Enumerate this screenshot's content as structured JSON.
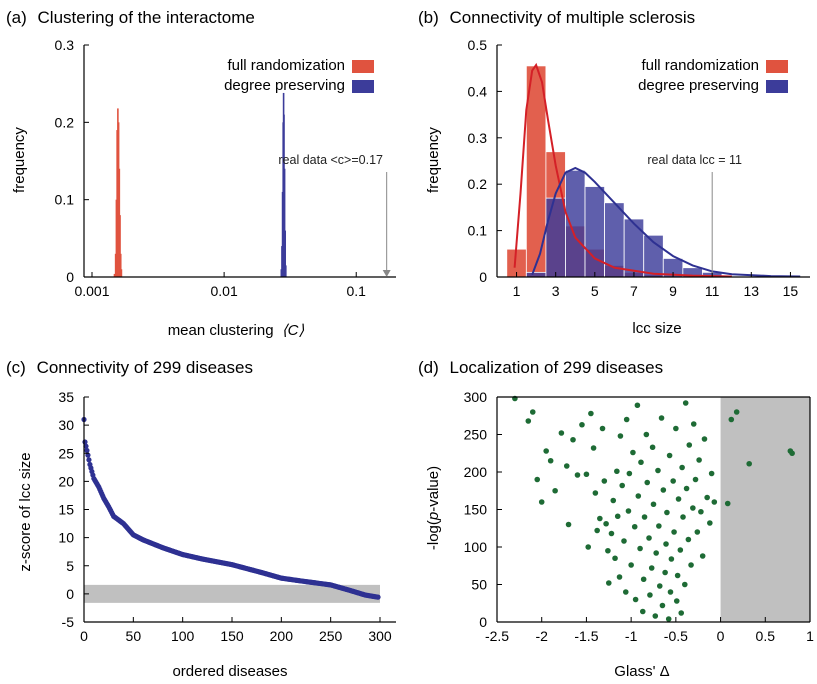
{
  "chart_data": [
    {
      "type": "bar",
      "panel_label": "(a)",
      "title": "Clustering of the interactome",
      "xlabel": "mean clustering",
      "xlabel_symbol": "⟨C⟩",
      "ylabel": "frequency",
      "x_scale": "log",
      "xlim": [
        0.001,
        0.2
      ],
      "ylim": [
        0,
        0.3
      ],
      "x_ticks": [
        0.001,
        0.01,
        0.1
      ],
      "x_tick_labels": [
        "0.001",
        "0.01",
        "0.1"
      ],
      "y_ticks": [
        0,
        0.1,
        0.2,
        0.3
      ],
      "y_tick_labels": [
        "0",
        "0.1",
        "0.2",
        "0.3"
      ],
      "legend_position": "top-right",
      "series": [
        {
          "name": "full randomization",
          "color": "#e0533f",
          "bins": [
            [
              0.00148,
              0.004
            ],
            [
              0.00151,
              0.03
            ],
            [
              0.00153,
              0.1
            ],
            [
              0.00155,
              0.19
            ],
            [
              0.00157,
              0.218
            ],
            [
              0.00159,
              0.2
            ],
            [
              0.00161,
              0.14
            ],
            [
              0.00163,
              0.08
            ],
            [
              0.00165,
              0.03
            ],
            [
              0.00167,
              0.01
            ]
          ]
        },
        {
          "name": "degree preserving",
          "color": "#3c3c9a",
          "bins": [
            [
              0.0271,
              0.01
            ],
            [
              0.0274,
              0.04
            ],
            [
              0.0277,
              0.11
            ],
            [
              0.028,
              0.2
            ],
            [
              0.0282,
              0.238
            ],
            [
              0.0284,
              0.21
            ],
            [
              0.0287,
              0.14
            ],
            [
              0.029,
              0.06
            ],
            [
              0.0293,
              0.015
            ]
          ]
        }
      ],
      "annotation": {
        "text": "real data <c>=0.17",
        "x": 0.17
      }
    },
    {
      "type": "bar",
      "panel_label": "(b)",
      "title": "Connectivity of multiple sclerosis",
      "xlabel": "lcc size",
      "ylabel": "frequency",
      "xlim": [
        0,
        16
      ],
      "ylim": [
        0,
        0.5
      ],
      "x_ticks": [
        1,
        3,
        5,
        7,
        9,
        11,
        13,
        15
      ],
      "y_ticks": [
        0,
        0.1,
        0.2,
        0.3,
        0.4,
        0.5
      ],
      "y_tick_labels": [
        "0",
        "0.1",
        "0.2",
        "0.3",
        "0.4",
        "0.5"
      ],
      "legend_position": "top-right",
      "categories": [
        1,
        2,
        3,
        4,
        5,
        6,
        7,
        8,
        9,
        10,
        11
      ],
      "series": [
        {
          "name": "full randomization",
          "color": "#e0533f",
          "values": [
            0.06,
            0.455,
            0.27,
            0.11,
            0.06,
            0.025,
            0.01,
            0.005,
            0,
            0,
            0
          ],
          "fit": [
            [
              0.9,
              0.02
            ],
            [
              1.2,
              0.18
            ],
            [
              1.5,
              0.36
            ],
            [
              1.8,
              0.445
            ],
            [
              2.0,
              0.457
            ],
            [
              2.3,
              0.42
            ],
            [
              2.6,
              0.34
            ],
            [
              3.0,
              0.24
            ],
            [
              3.5,
              0.14
            ],
            [
              4.0,
              0.085
            ],
            [
              5.0,
              0.04
            ],
            [
              6.0,
              0.02
            ],
            [
              8.0,
              0.007
            ],
            [
              10.0,
              0.003
            ],
            [
              12.0,
              0.001
            ]
          ]
        },
        {
          "name": "degree preserving",
          "color": "#3c3c9a",
          "values": [
            0,
            0.01,
            0.17,
            0.23,
            0.195,
            0.16,
            0.125,
            0.09,
            0.04,
            0.02,
            0.01
          ],
          "fit": [
            [
              1.8,
              0.005
            ],
            [
              2.2,
              0.05
            ],
            [
              2.6,
              0.12
            ],
            [
              3.0,
              0.18
            ],
            [
              3.5,
              0.225
            ],
            [
              4.0,
              0.235
            ],
            [
              4.5,
              0.225
            ],
            [
              5.0,
              0.205
            ],
            [
              6.0,
              0.16
            ],
            [
              7.0,
              0.115
            ],
            [
              8.0,
              0.075
            ],
            [
              9.0,
              0.045
            ],
            [
              10.0,
              0.025
            ],
            [
              11.0,
              0.012
            ],
            [
              12.0,
              0.006
            ],
            [
              14.0,
              0.002
            ],
            [
              15.5,
              0.001
            ]
          ]
        }
      ],
      "annotation": {
        "text": "real data lcc = 11",
        "x": 11
      }
    },
    {
      "type": "scatter",
      "panel_label": "(c)",
      "title": "Connectivity of 299 diseases",
      "xlabel": "ordered diseases",
      "ylabel": "z-score of lcc size",
      "xlim": [
        0,
        300
      ],
      "ylim": [
        -5,
        35
      ],
      "x_ticks": [
        0,
        50,
        100,
        150,
        200,
        250,
        300
      ],
      "y_ticks": [
        -5,
        0,
        5,
        10,
        15,
        20,
        25,
        30,
        35
      ],
      "shaded_band_y": [
        -1.6,
        1.6
      ],
      "color": "#2e3192",
      "profile": [
        [
          0,
          31
        ],
        [
          1,
          27
        ],
        [
          3,
          25.5
        ],
        [
          6,
          23
        ],
        [
          10,
          20.5
        ],
        [
          15,
          19
        ],
        [
          20,
          17
        ],
        [
          25,
          15.5
        ],
        [
          30,
          13.8
        ],
        [
          40,
          12.5
        ],
        [
          50,
          10.5
        ],
        [
          60,
          9.6
        ],
        [
          80,
          8.2
        ],
        [
          100,
          7.0
        ],
        [
          120,
          6.2
        ],
        [
          150,
          5.2
        ],
        [
          180,
          3.8
        ],
        [
          200,
          2.8
        ],
        [
          220,
          2.3
        ],
        [
          250,
          1.6
        ],
        [
          270,
          0.6
        ],
        [
          285,
          -0.2
        ],
        [
          295,
          -0.5
        ],
        [
          299,
          -0.6
        ]
      ]
    },
    {
      "type": "scatter",
      "panel_label": "(d)",
      "title": "Localization of 299 diseases",
      "xlabel": "Glass' Δ",
      "ylabel_prefix": "-log(",
      "ylabel_italic": "p",
      "ylabel_suffix": "-value)",
      "xlim": [
        -2.5,
        1
      ],
      "ylim": [
        0,
        300
      ],
      "x_ticks": [
        -2.5,
        -2,
        -1.5,
        -1,
        -0.5,
        0,
        0.5,
        1
      ],
      "x_tick_labels": [
        "-2.5",
        "-2",
        "-1.5",
        "-1",
        "-0.5",
        "0",
        "0.5",
        "1"
      ],
      "y_ticks": [
        0,
        50,
        100,
        150,
        200,
        250,
        300
      ],
      "shaded_region_x": [
        0,
        1
      ],
      "color": "#1e6b35",
      "points": [
        [
          -2.3,
          298
        ],
        [
          -2.15,
          268
        ],
        [
          -2.1,
          280
        ],
        [
          -2.05,
          190
        ],
        [
          -2.0,
          160
        ],
        [
          -1.95,
          228
        ],
        [
          -1.9,
          215
        ],
        [
          -1.85,
          175
        ],
        [
          -1.78,
          252
        ],
        [
          -1.72,
          208
        ],
        [
          -1.7,
          130
        ],
        [
          -1.65,
          243
        ],
        [
          -1.6,
          196
        ],
        [
          -1.55,
          263
        ],
        [
          -1.5,
          197
        ],
        [
          -1.48,
          100
        ],
        [
          -1.45,
          278
        ],
        [
          -1.42,
          232
        ],
        [
          -1.4,
          172
        ],
        [
          -1.38,
          122
        ],
        [
          -1.35,
          138
        ],
        [
          -1.32,
          258
        ],
        [
          -1.3,
          188
        ],
        [
          -1.28,
          131
        ],
        [
          -1.26,
          95
        ],
        [
          -1.25,
          52
        ],
        [
          -1.22,
          118
        ],
        [
          -1.2,
          162
        ],
        [
          -1.18,
          85
        ],
        [
          -1.16,
          201
        ],
        [
          -1.15,
          141
        ],
        [
          -1.13,
          60
        ],
        [
          -1.12,
          248
        ],
        [
          -1.1,
          182
        ],
        [
          -1.08,
          108
        ],
        [
          -1.06,
          40
        ],
        [
          -1.05,
          270
        ],
        [
          -1.03,
          148
        ],
        [
          -1.02,
          198
        ],
        [
          -1.0,
          76
        ],
        [
          -0.98,
          226
        ],
        [
          -0.96,
          127
        ],
        [
          -0.95,
          30
        ],
        [
          -0.93,
          289
        ],
        [
          -0.92,
          168
        ],
        [
          -0.9,
          98
        ],
        [
          -0.89,
          213
        ],
        [
          -0.87,
          14
        ],
        [
          -0.86,
          57
        ],
        [
          -0.85,
          140
        ],
        [
          -0.83,
          250
        ],
        [
          -0.82,
          186
        ],
        [
          -0.8,
          112
        ],
        [
          -0.79,
          36
        ],
        [
          -0.77,
          72
        ],
        [
          -0.76,
          233
        ],
        [
          -0.75,
          157
        ],
        [
          -0.73,
          8
        ],
        [
          -0.72,
          92
        ],
        [
          -0.7,
          202
        ],
        [
          -0.69,
          128
        ],
        [
          -0.68,
          48
        ],
        [
          -0.66,
          272
        ],
        [
          -0.65,
          22
        ],
        [
          -0.64,
          176
        ],
        [
          -0.62,
          66
        ],
        [
          -0.61,
          104
        ],
        [
          -0.6,
          146
        ],
        [
          -0.58,
          4
        ],
        [
          -0.57,
          222
        ],
        [
          -0.56,
          40
        ],
        [
          -0.55,
          84
        ],
        [
          -0.53,
          188
        ],
        [
          -0.52,
          120
        ],
        [
          -0.5,
          258
        ],
        [
          -0.49,
          28
        ],
        [
          -0.48,
          62
        ],
        [
          -0.47,
          164
        ],
        [
          -0.45,
          96
        ],
        [
          -0.44,
          12
        ],
        [
          -0.43,
          206
        ],
        [
          -0.42,
          140
        ],
        [
          -0.4,
          50
        ],
        [
          -0.39,
          292
        ],
        [
          -0.38,
          178
        ],
        [
          -0.36,
          110
        ],
        [
          -0.35,
          236
        ],
        [
          -0.33,
          76
        ],
        [
          -0.31,
          152
        ],
        [
          -0.3,
          264
        ],
        [
          -0.28,
          190
        ],
        [
          -0.26,
          120
        ],
        [
          -0.24,
          216
        ],
        [
          -0.22,
          147
        ],
        [
          -0.2,
          88
        ],
        [
          -0.18,
          244
        ],
        [
          -0.15,
          166
        ],
        [
          -0.12,
          132
        ],
        [
          -0.1,
          198
        ],
        [
          -0.07,
          160
        ],
        [
          0.08,
          158
        ],
        [
          0.12,
          270
        ],
        [
          0.18,
          280
        ],
        [
          0.32,
          211
        ],
        [
          0.78,
          228
        ],
        [
          0.8,
          225
        ]
      ]
    }
  ],
  "colors": {
    "red": "#e0533f",
    "red_fit": "#d42027",
    "blue_bar": "#3c3c9a",
    "blue_fit": "#2e3192",
    "green": "#1e6b35",
    "shade": "#c0c0c0",
    "axis": "#000000"
  }
}
